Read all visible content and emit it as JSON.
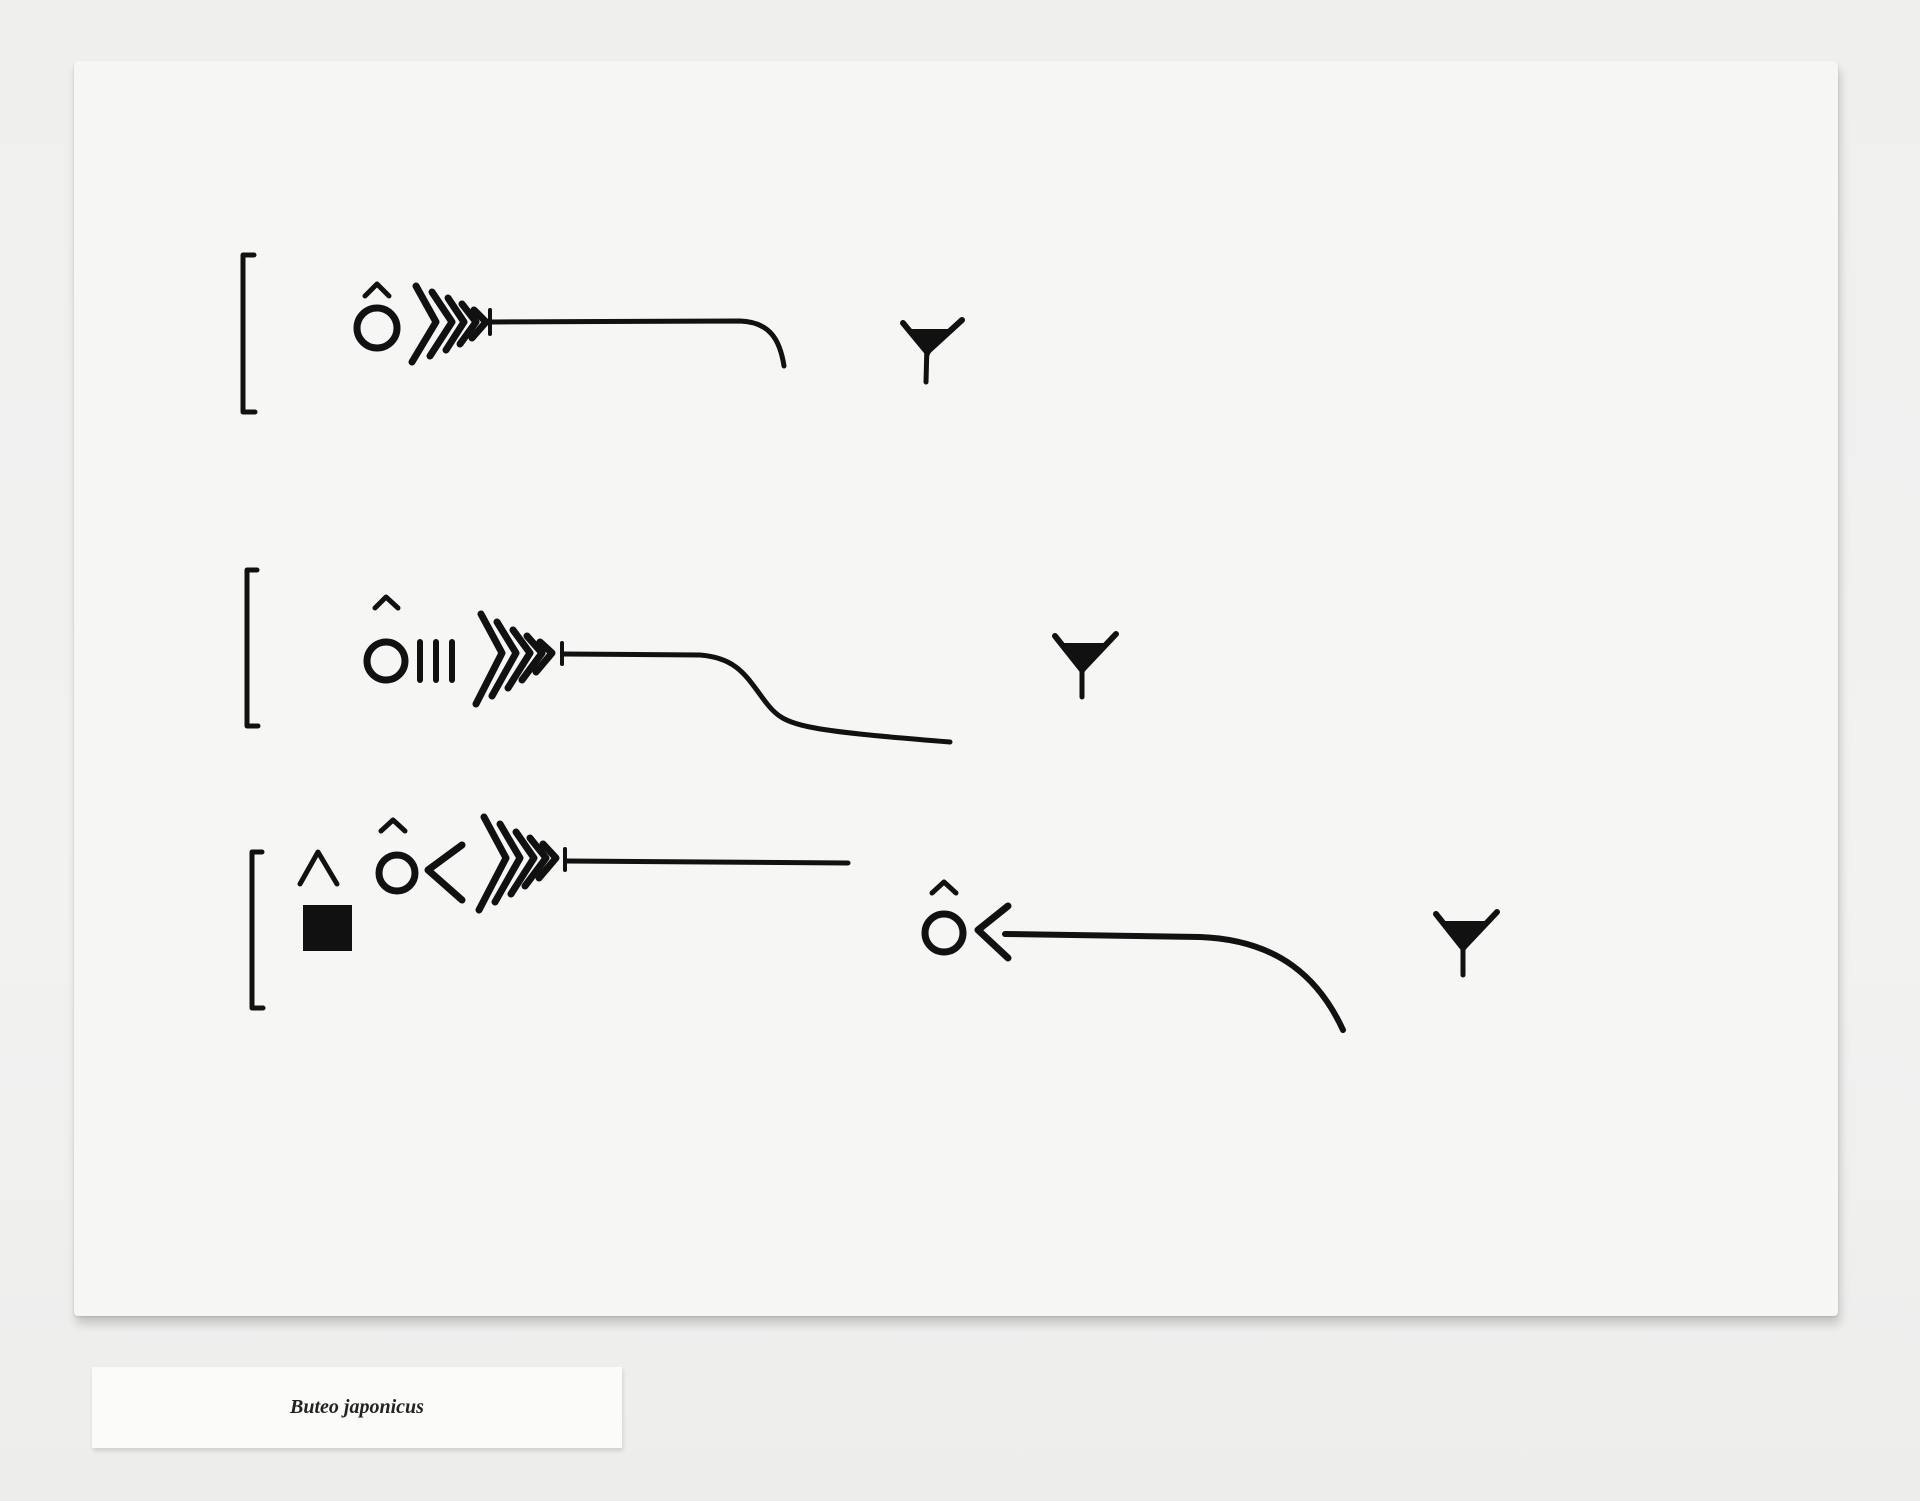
{
  "label": {
    "species_name": "Buteo japonicus"
  },
  "colors": {
    "ink": "#111111",
    "board": "#f6f6f5",
    "wall": "#f1f1f0"
  },
  "artwork": {
    "rows": [
      {
        "name": "row-1",
        "glyphs": [
          "bracket-icon",
          "o-circumflex-icon",
          "chevron-cluster-icon",
          "long-curve-down-icon",
          "bird-foot-icon"
        ]
      },
      {
        "name": "row-2",
        "glyphs": [
          "bracket-icon",
          "o-circumflex-icon",
          "triple-bar-icon",
          "chevron-cluster-icon",
          "s-curve-line-icon",
          "bird-foot-icon"
        ]
      },
      {
        "name": "row-3",
        "glyphs": [
          "bracket-icon",
          "caret-icon",
          "filled-square-icon",
          "o-circumflex-icon",
          "left-angle-icon",
          "chevron-cluster-icon",
          "straight-line-icon",
          "o-circumflex-icon",
          "left-angle-icon",
          "curve-down-icon",
          "bird-foot-icon"
        ]
      }
    ]
  }
}
